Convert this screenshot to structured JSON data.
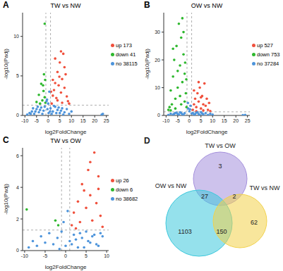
{
  "chart_data": [
    {
      "type": "scatter",
      "panel": "A",
      "title": "TW vs NW",
      "x_label": "log2FoldChange",
      "y_label": "-log10(Padj)",
      "xlim": [
        -11,
        26
      ],
      "xticks": [
        -10,
        -5,
        0,
        5,
        10,
        15,
        20,
        25
      ],
      "ylim": [
        0,
        13
      ],
      "yticks": [
        0,
        5,
        10
      ],
      "grid": false,
      "cutoff_x": [
        -1,
        1
      ],
      "cutoff_y": 1.3,
      "series": [
        {
          "name": "up 173",
          "color": "#f0503c",
          "points": [
            [
              1.5,
              1.5
            ],
            [
              2,
              2.5
            ],
            [
              2.5,
              3.2
            ],
            [
              3,
              4.1
            ],
            [
              3.5,
              2.2
            ],
            [
              4,
              5.5
            ],
            [
              4.5,
              3.8
            ],
            [
              5,
              6.7
            ],
            [
              5.5,
              2.9
            ],
            [
              6,
              4.6
            ],
            [
              6.5,
              7.8
            ],
            [
              7,
              3.5
            ],
            [
              7.5,
              5.2
            ],
            [
              8,
              2.4
            ],
            [
              8.5,
              1.8
            ],
            [
              3,
              7.2
            ],
            [
              4,
              1.9
            ],
            [
              2,
              4.5
            ],
            [
              5.5,
              8.1
            ],
            [
              6,
              1.6
            ],
            [
              1.2,
              3
            ],
            [
              7,
              6.1
            ],
            [
              9,
              1.5
            ],
            [
              4.8,
              4.9
            ]
          ]
        },
        {
          "name": "down 41",
          "color": "#2eb82e",
          "points": [
            [
              -1.2,
              1.6
            ],
            [
              -1.5,
              2.3
            ],
            [
              -2,
              3.1
            ],
            [
              -2.5,
              1.9
            ],
            [
              -3,
              4
            ],
            [
              -1.8,
              5.2
            ],
            [
              -4,
              2.6
            ],
            [
              -2.2,
              3.8
            ],
            [
              -3.5,
              1.5
            ],
            [
              -1.5,
              11.6
            ],
            [
              -5,
              1.7
            ],
            [
              -1.3,
              4.5
            ]
          ]
        },
        {
          "name": "no 38115",
          "color": "#4d94db",
          "points": [
            [
              -9,
              0.1
            ],
            [
              -8,
              0.3
            ],
            [
              -7,
              0.5
            ],
            [
              -6,
              0.2
            ],
            [
              -5,
              0.8
            ],
            [
              -4,
              0.4
            ],
            [
              -3,
              1
            ],
            [
              -2,
              0.6
            ],
            [
              -1.5,
              1.1
            ],
            [
              -0.5,
              2
            ],
            [
              0,
              1.5
            ],
            [
              0.5,
              3
            ],
            [
              -0.3,
              0.8
            ],
            [
              0.2,
              0.3
            ],
            [
              1,
              0.9
            ],
            [
              2,
              0.5
            ],
            [
              3,
              1.1
            ],
            [
              4,
              0.7
            ],
            [
              5,
              0.3
            ],
            [
              6,
              0.9
            ],
            [
              7,
              0.4
            ],
            [
              8,
              0.8
            ],
            [
              9,
              0.2
            ],
            [
              10,
              0.5
            ],
            [
              23,
              0.1
            ],
            [
              23.5,
              0.2
            ],
            [
              -0.7,
              1.8
            ],
            [
              0.8,
              0.5
            ],
            [
              1.5,
              0.2
            ],
            [
              2.5,
              1.2
            ],
            [
              3.5,
              0.3
            ],
            [
              4.5,
              1
            ],
            [
              5.5,
              0.6
            ],
            [
              6.5,
              0.1
            ],
            [
              -2.5,
              0.2
            ],
            [
              -3.5,
              0.7
            ],
            [
              -4.5,
              1.1
            ],
            [
              -5.5,
              0.5
            ],
            [
              -6.5,
              0.9
            ],
            [
              -7.5,
              0.2
            ]
          ]
        }
      ]
    },
    {
      "type": "scatter",
      "panel": "B",
      "title": "OW vs NW",
      "x_label": "log2FoldChange",
      "y_label": "-log10(Padj)",
      "xlim": [
        -11,
        26
      ],
      "xticks": [
        -10,
        -5,
        0,
        5,
        10,
        15,
        20,
        25
      ],
      "ylim": [
        0,
        37
      ],
      "yticks": [
        0,
        10,
        20,
        30
      ],
      "grid": false,
      "cutoff_x": [
        -1,
        1
      ],
      "cutoff_y": 1.3,
      "series": [
        {
          "name": "up 527",
          "color": "#f0503c",
          "points": [
            [
              1.5,
              2
            ],
            [
              2,
              4
            ],
            [
              2.5,
              6
            ],
            [
              3,
              3
            ],
            [
              3.5,
              8
            ],
            [
              4,
              5
            ],
            [
              4.5,
              10
            ],
            [
              5,
              2.5
            ],
            [
              5.5,
              7
            ],
            [
              6,
              4
            ],
            [
              6.5,
              11.5
            ],
            [
              7,
              3.5
            ],
            [
              7.5,
              6
            ],
            [
              8,
              2
            ],
            [
              8.5,
              4.5
            ],
            [
              9,
              1.6
            ],
            [
              2,
              9
            ],
            [
              3,
              1.5
            ],
            [
              4,
              12
            ],
            [
              5,
              6.5
            ],
            [
              6,
              1.8
            ]
          ]
        },
        {
          "name": "down 753",
          "color": "#2eb82e",
          "points": [
            [
              -1.2,
              3
            ],
            [
              -1.5,
              8
            ],
            [
              -2,
              15
            ],
            [
              -2.5,
              22
            ],
            [
              -3,
              12
            ],
            [
              -3.5,
              28
            ],
            [
              -4,
              18
            ],
            [
              -4.5,
              33
            ],
            [
              -5,
              10
            ],
            [
              -5.5,
              25
            ],
            [
              -6,
              6
            ],
            [
              -6.5,
              20
            ],
            [
              -7,
              14
            ],
            [
              -7.5,
              4
            ],
            [
              -8,
              9
            ],
            [
              -8.5,
              3
            ],
            [
              -9,
              2
            ],
            [
              -2,
              5
            ],
            [
              -3,
              35
            ],
            [
              -1.8,
              19
            ],
            [
              -4,
              7
            ],
            [
              -5,
              16
            ],
            [
              -6,
              2.5
            ],
            [
              -2.5,
              30
            ],
            [
              -3.5,
              4
            ],
            [
              -7,
              24
            ],
            [
              -1.3,
              13
            ],
            [
              -8,
              1.8
            ]
          ]
        },
        {
          "name": "no 37284",
          "color": "#4d94db",
          "points": [
            [
              -9,
              0.2
            ],
            [
              -8,
              0.6
            ],
            [
              -7,
              0.3
            ],
            [
              -6,
              0.9
            ],
            [
              -5,
              0.5
            ],
            [
              -4,
              1.1
            ],
            [
              -3,
              0.4
            ],
            [
              -2,
              0.8
            ],
            [
              -0.5,
              2.5
            ],
            [
              0,
              1.5
            ],
            [
              0.5,
              3.5
            ],
            [
              1,
              0.7
            ],
            [
              2,
              0.3
            ],
            [
              3,
              1
            ],
            [
              4,
              0.5
            ],
            [
              5,
              1.2
            ],
            [
              6,
              0.4
            ],
            [
              7,
              0.8
            ],
            [
              8,
              0.2
            ],
            [
              9,
              0.6
            ],
            [
              10,
              0.3
            ],
            [
              23,
              0.1
            ],
            [
              24,
              0.2
            ],
            [
              -0.6,
              4.5
            ],
            [
              0.3,
              2.2
            ],
            [
              1.5,
              0.9
            ],
            [
              2.5,
              0.5
            ],
            [
              3.5,
              1.1
            ],
            [
              4.5,
              0.2
            ],
            [
              5.5,
              0.7
            ],
            [
              -2.5,
              0.1
            ],
            [
              -3.5,
              0.9
            ],
            [
              -4.5,
              0.3
            ],
            [
              -5.5,
              1
            ],
            [
              -6.5,
              0.6
            ]
          ]
        }
      ]
    },
    {
      "type": "scatter",
      "panel": "C",
      "title": "TW vs OW",
      "x_label": "log2FoldChange",
      "y_label": "-log10(Padj)",
      "xlim": [
        -10.5,
        10.5
      ],
      "xticks": [
        -10,
        -5,
        0,
        5,
        10
      ],
      "ylim": [
        0,
        6.5
      ],
      "yticks": [
        0,
        2,
        4,
        6
      ],
      "grid": false,
      "cutoff_x": [
        -1,
        1
      ],
      "cutoff_y": 1.3,
      "series": [
        {
          "name": "up 26",
          "color": "#f0503c",
          "points": [
            [
              1.5,
              1.6
            ],
            [
              2,
              2.4
            ],
            [
              3,
              3.1
            ],
            [
              3.5,
              1.8
            ],
            [
              4,
              4.2
            ],
            [
              5,
              2.7
            ],
            [
              5.5,
              5.1
            ],
            [
              6,
              3.5
            ],
            [
              6.5,
              1.9
            ],
            [
              7,
              6.2
            ],
            [
              7.5,
              3
            ],
            [
              8,
              4.7
            ],
            [
              8.5,
              2.2
            ],
            [
              9,
              1.5
            ],
            [
              4.5,
              3.8
            ],
            [
              6,
              5.6
            ],
            [
              2.5,
              1.4
            ],
            [
              8,
              3.9
            ]
          ]
        },
        {
          "name": "down 6",
          "color": "#2eb82e",
          "points": [
            [
              -1.8,
              1.6
            ],
            [
              -2.5,
              1.9
            ],
            [
              -9.5,
              2.6
            ]
          ]
        },
        {
          "name": "no 38682",
          "color": "#4d94db",
          "points": [
            [
              -9,
              0.2
            ],
            [
              -8,
              0.6
            ],
            [
              -7,
              0.3
            ],
            [
              -6,
              0.9
            ],
            [
              -5,
              0.5
            ],
            [
              -4,
              1.1
            ],
            [
              -3,
              0.4
            ],
            [
              -2,
              0.8
            ],
            [
              -1,
              1.2
            ],
            [
              0,
              0.3
            ],
            [
              0.5,
              2.5
            ],
            [
              -0.5,
              1.8
            ],
            [
              1,
              0.6
            ],
            [
              2,
              1
            ],
            [
              3,
              0.2
            ],
            [
              4,
              0.8
            ],
            [
              5,
              1.2
            ],
            [
              6,
              0.5
            ],
            [
              7,
              1
            ],
            [
              8,
              0.3
            ],
            [
              9,
              0.9
            ],
            [
              -1.5,
              0.1
            ],
            [
              1.5,
              0.4
            ],
            [
              2.5,
              0.7
            ],
            [
              3.5,
              1.1
            ],
            [
              4.5,
              0.2
            ],
            [
              5.5,
              0.6
            ],
            [
              6.5,
              0.9
            ],
            [
              7.5,
              0.4
            ],
            [
              8.5,
              1.1
            ]
          ]
        }
      ]
    },
    {
      "type": "venn",
      "panel": "D",
      "sets": [
        {
          "name": "TW vs OW",
          "color": "#a48fdc"
        },
        {
          "name": "OW vs NW",
          "color": "#3ec9dd"
        },
        {
          "name": "TW vs NW",
          "color": "#f2d24b"
        }
      ],
      "regions": [
        {
          "sets": [
            "TW vs OW"
          ],
          "value": 3
        },
        {
          "sets": [
            "TW vs OW",
            "OW vs NW"
          ],
          "value": 27
        },
        {
          "sets": [
            "TW vs OW",
            "TW vs NW"
          ],
          "value": 2
        },
        {
          "sets": [
            "OW vs NW"
          ],
          "value": 1103
        },
        {
          "sets": [
            "OW vs NW",
            "TW vs NW"
          ],
          "value": 150
        },
        {
          "sets": [
            "TW vs NW"
          ],
          "value": 62
        }
      ]
    }
  ]
}
